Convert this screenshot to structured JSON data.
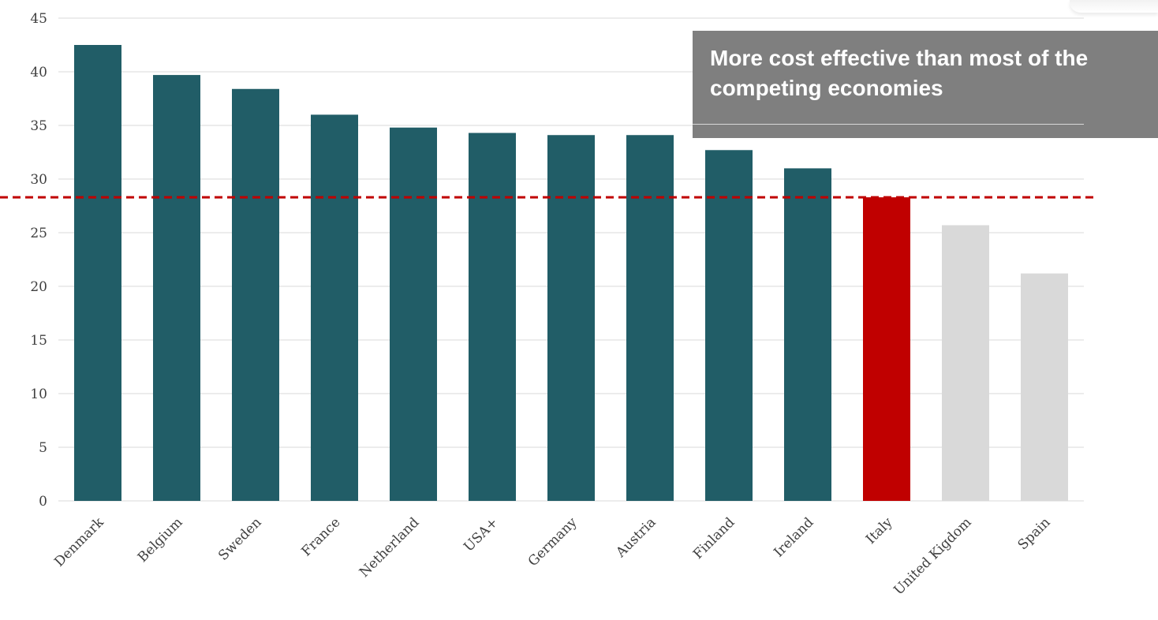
{
  "chart_data": {
    "type": "bar",
    "categories": [
      "Denmark",
      "Belgium",
      "Sweden",
      "France",
      "Netherland",
      "USA+",
      "Germany",
      "Austria",
      "Finland",
      "Ireland",
      "Italy",
      "United Kigdom",
      "Spain"
    ],
    "values": [
      42.5,
      39.7,
      38.4,
      36.0,
      34.8,
      34.3,
      34.1,
      34.1,
      32.7,
      31.0,
      28.3,
      25.7,
      21.2
    ],
    "ylim": [
      0,
      45
    ],
    "yticks": [
      0,
      5,
      10,
      15,
      20,
      25,
      30,
      35,
      40,
      45
    ],
    "reference_line": 28.3,
    "grid": true,
    "title": "",
    "xlabel": "",
    "ylabel": ""
  },
  "annotation": {
    "text": "More cost effective than most of the competing economies"
  },
  "colors": {
    "bar_default": "#215d67",
    "bar_highlight": "#c00000",
    "bar_muted": "#d9d9d9",
    "reference_line": "#c00000",
    "callout_background": "#7f7f7f"
  },
  "bar_groups": {
    "highlight": [
      "Italy"
    ],
    "muted": [
      "United Kigdom",
      "Spain"
    ]
  }
}
